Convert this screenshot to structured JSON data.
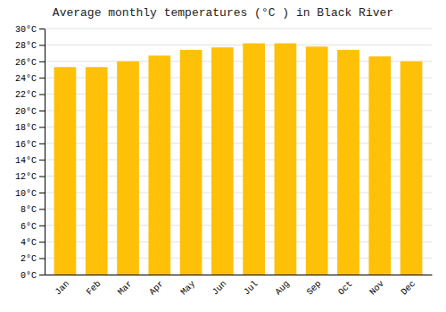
{
  "chart_data": {
    "type": "bar",
    "title": "Average monthly temperatures (°C ) in Black River",
    "categories": [
      "Jan",
      "Feb",
      "Mar",
      "Apr",
      "May",
      "Jun",
      "Jul",
      "Aug",
      "Sep",
      "Oct",
      "Nov",
      "Dec"
    ],
    "values": [
      25.3,
      25.3,
      26.0,
      26.7,
      27.4,
      27.7,
      28.2,
      28.2,
      27.8,
      27.4,
      26.6,
      26.0
    ],
    "color": "#FFC107",
    "ylim": [
      0,
      30
    ],
    "yticks": [
      {
        "value": 0,
        "label": "0°C"
      },
      {
        "value": 2,
        "label": "2°C"
      },
      {
        "value": 4,
        "label": "4°C"
      },
      {
        "value": 6,
        "label": "6°C"
      },
      {
        "value": 8,
        "label": "8°C"
      },
      {
        "value": 10,
        "label": "10°C"
      },
      {
        "value": 12,
        "label": "12°C"
      },
      {
        "value": 14,
        "label": "14°C"
      },
      {
        "value": 16,
        "label": "16°C"
      },
      {
        "value": 18,
        "label": "18°C"
      },
      {
        "value": 20,
        "label": "20°C"
      },
      {
        "value": 22,
        "label": "22°C"
      },
      {
        "value": 24,
        "label": "24°C"
      },
      {
        "value": 26,
        "label": "26°C"
      },
      {
        "value": 28,
        "label": "28°C"
      },
      {
        "value": 30,
        "label": "30°C"
      }
    ],
    "grid": true
  }
}
